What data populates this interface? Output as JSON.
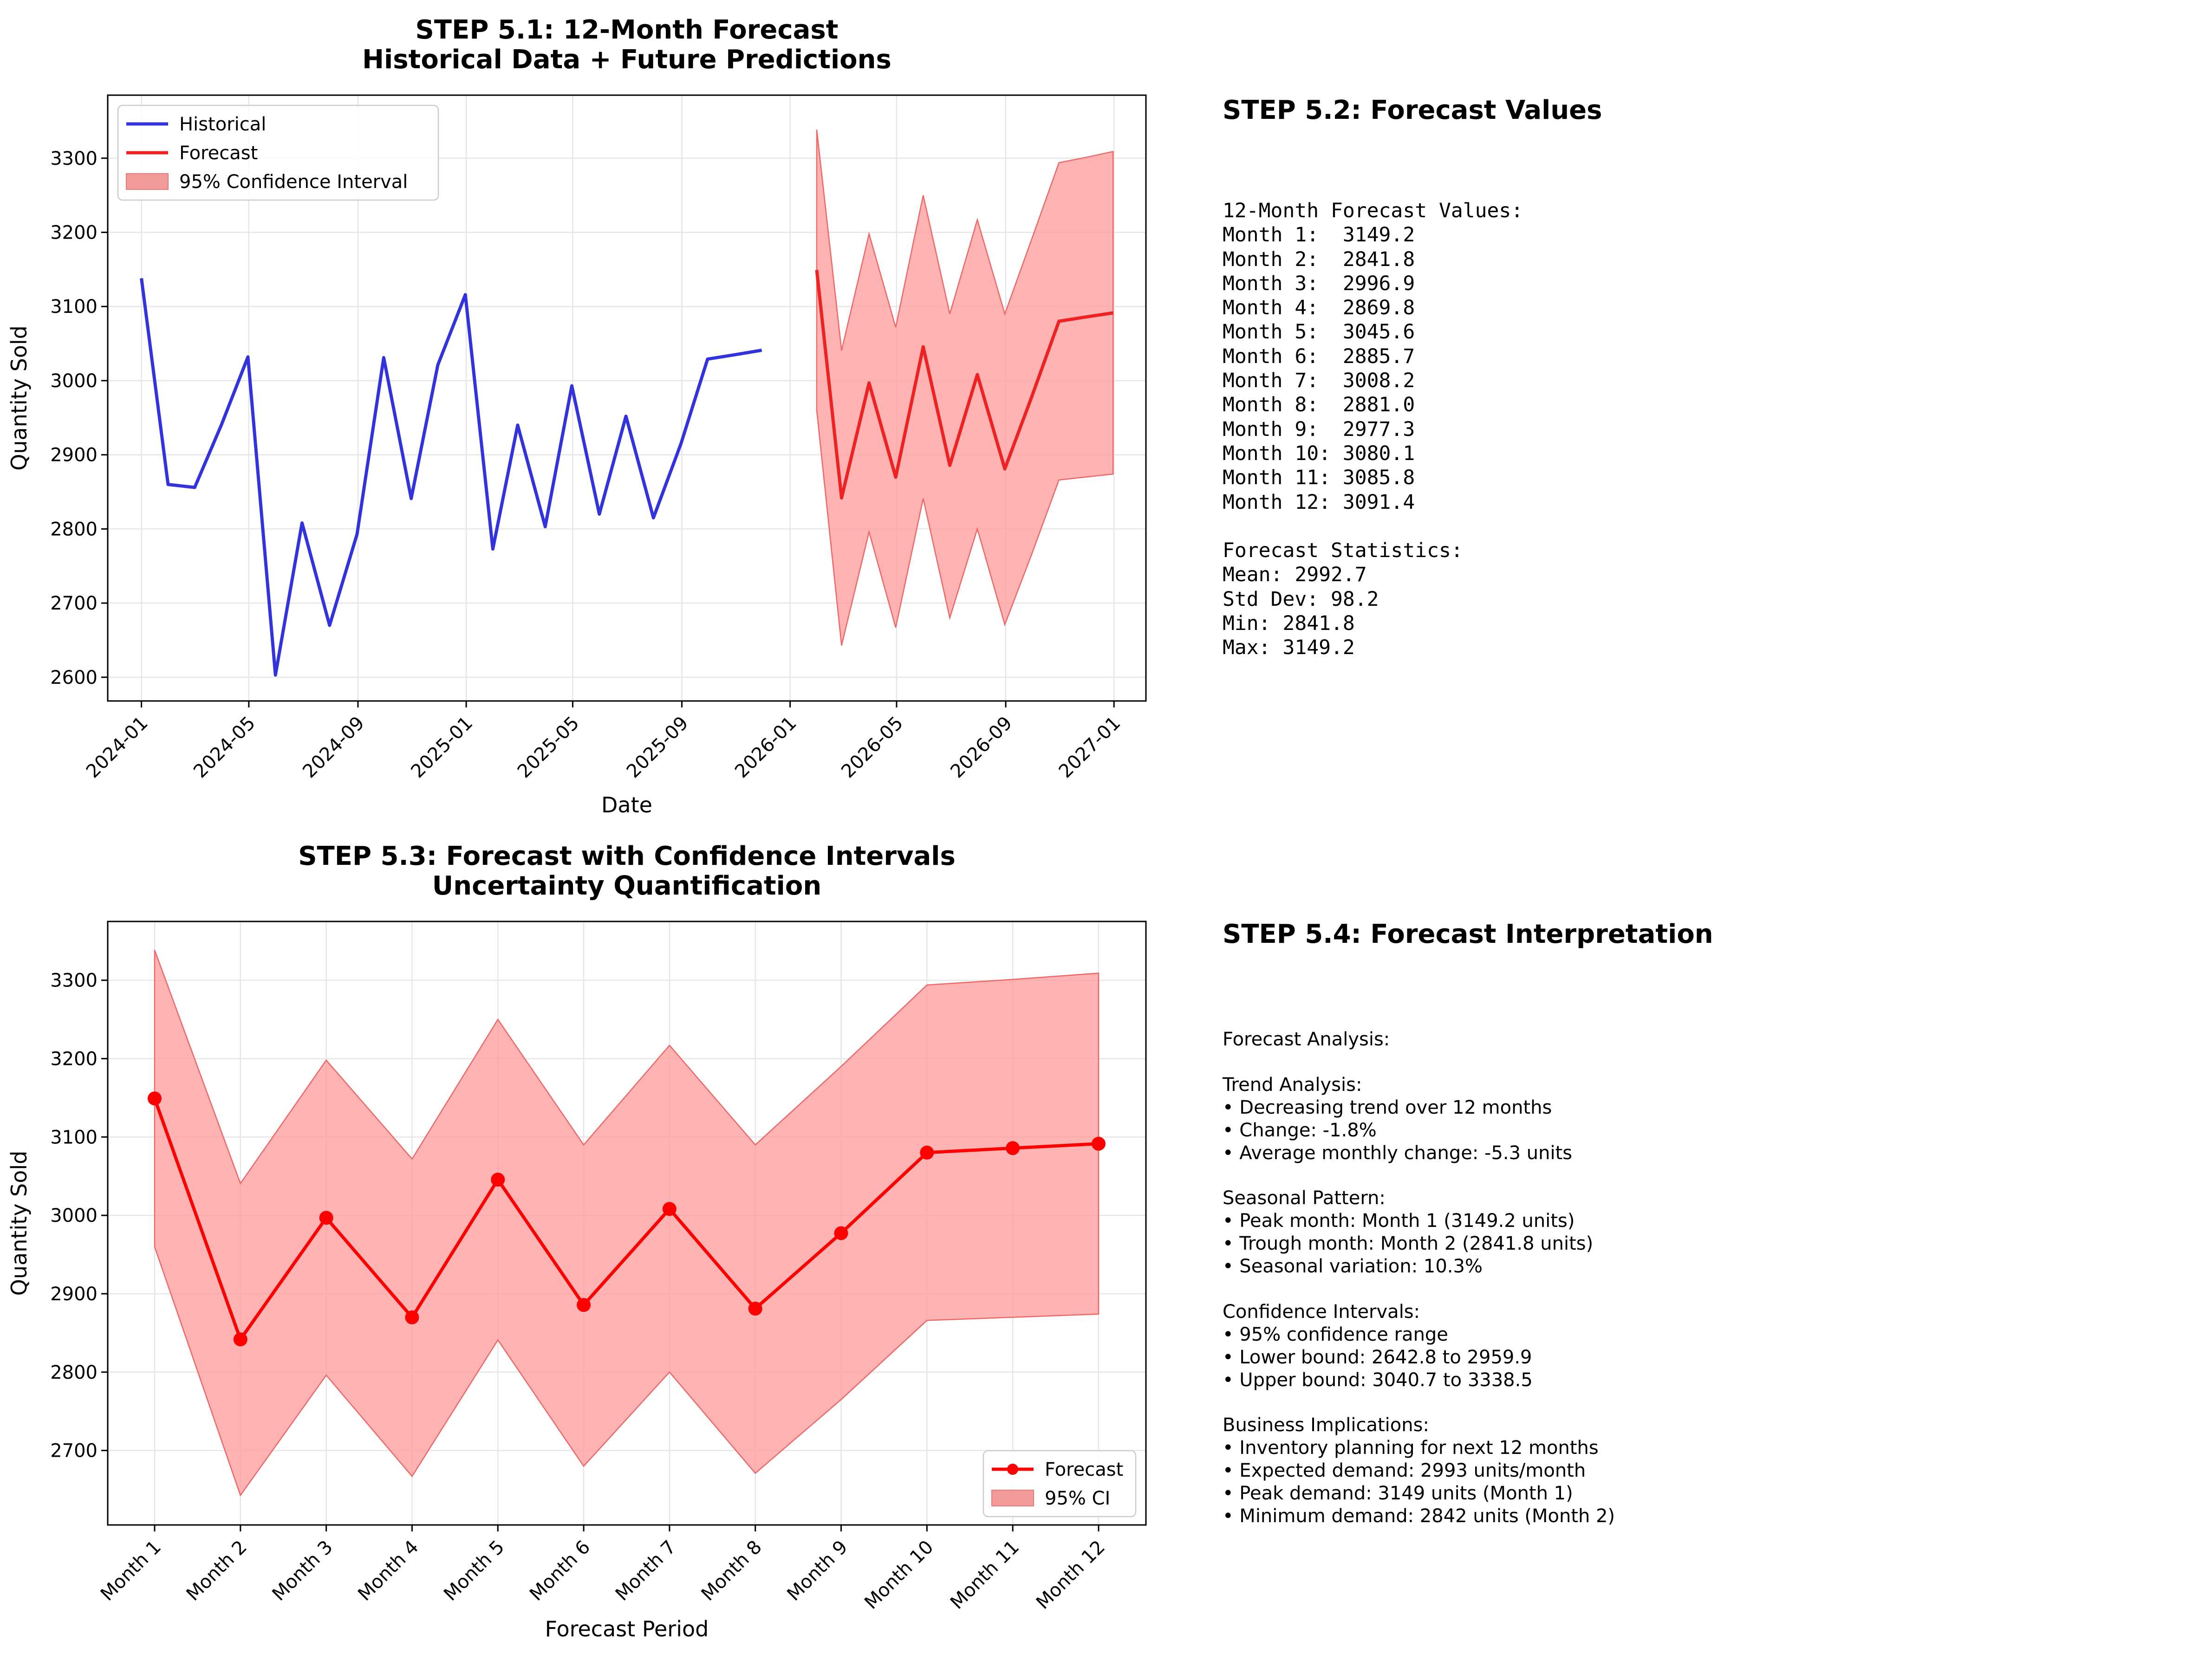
{
  "chart_data": [
    {
      "type": "line",
      "title": "STEP 5.1: 12-Month Forecast",
      "subtitle": "Historical Data + Future Predictions",
      "xlabel": "Date",
      "ylabel": "Quantity Sold",
      "ylim": [
        2568,
        3385
      ],
      "x_range": [
        "2023-11-24",
        "2027-02-06"
      ],
      "grid": true,
      "legend_placement": "top-left",
      "x_ticks": [
        "2024-01",
        "2024-05",
        "2024-09",
        "2025-01",
        "2025-05",
        "2025-09",
        "2026-01",
        "2026-05",
        "2026-09",
        "2027-01"
      ],
      "y_ticks": [
        2600,
        2700,
        2800,
        2900,
        3000,
        3100,
        3200,
        3300
      ],
      "series": [
        {
          "name": "Historical",
          "color": "#3333dd",
          "x": [
            "2024-01-01",
            "2024-01-31",
            "2024-03-01",
            "2024-03-31",
            "2024-04-30",
            "2024-05-31",
            "2024-06-30",
            "2024-07-31",
            "2024-08-31",
            "2024-09-30",
            "2024-10-31",
            "2024-11-30",
            "2024-12-31",
            "2025-01-31",
            "2025-02-28",
            "2025-03-31",
            "2025-04-30",
            "2025-05-31",
            "2025-06-30",
            "2025-07-31",
            "2025-08-31",
            "2025-09-30",
            "2025-10-31",
            "2025-11-30"
          ],
          "y": [
            3138,
            2860,
            2856,
            2940,
            3032,
            2603,
            2808,
            2670,
            2793,
            3031,
            2841,
            3021,
            3116,
            2773,
            2940,
            2803,
            2993,
            2820,
            2952,
            2815,
            2915,
            3029,
            3035,
            3041
          ]
        },
        {
          "name": "Forecast",
          "color": "#ee2222",
          "x": [
            "2026-01-31",
            "2026-02-28",
            "2026-03-31",
            "2026-04-30",
            "2026-05-31",
            "2026-06-30",
            "2026-07-31",
            "2026-08-31",
            "2026-09-30",
            "2026-10-31",
            "2026-11-30",
            "2026-12-31"
          ],
          "y": [
            3149.2,
            2841.8,
            2996.9,
            2869.8,
            3045.6,
            2885.7,
            3008.2,
            2881.0,
            2977.3,
            3080.1,
            3085.8,
            3091.4
          ]
        },
        {
          "name": "95% Confidence Interval",
          "type": "band",
          "color": "#ff9999",
          "x": [
            "2026-01-31",
            "2026-02-28",
            "2026-03-31",
            "2026-04-30",
            "2026-05-31",
            "2026-06-30",
            "2026-07-31",
            "2026-08-31",
            "2026-09-30",
            "2026-10-31",
            "2026-11-30",
            "2026-12-31"
          ],
          "lower": [
            2959.9,
            2642.8,
            2796,
            2667,
            2841,
            2680,
            2800,
            2671,
            2765,
            2866,
            2870,
            2874
          ],
          "upper": [
            3338.5,
            3040.7,
            3198,
            3072,
            3250,
            3090,
            3217,
            3090,
            3190,
            3294,
            3301,
            3309
          ]
        }
      ]
    },
    {
      "type": "line",
      "title": "STEP 5.3: Forecast with Confidence Intervals",
      "subtitle": "Uncertainty Quantification",
      "xlabel": "Forecast Period",
      "ylabel": "Quantity Sold",
      "ylim": [
        2605,
        3375
      ],
      "grid": true,
      "legend_placement": "bottom-right",
      "categories": [
        "Month 1",
        "Month 2",
        "Month 3",
        "Month 4",
        "Month 5",
        "Month 6",
        "Month 7",
        "Month 8",
        "Month 9",
        "Month 10",
        "Month 11",
        "Month 12"
      ],
      "y_ticks": [
        2700,
        2800,
        2900,
        3000,
        3100,
        3200,
        3300
      ],
      "series": [
        {
          "name": "Forecast",
          "color": "#ff0000",
          "values": [
            3149.2,
            2841.8,
            2996.9,
            2869.8,
            3045.6,
            2885.7,
            3008.2,
            2881.0,
            2977.3,
            3080.1,
            3085.8,
            3091.4
          ]
        },
        {
          "name": "95% CI",
          "type": "band",
          "color": "#ff9999",
          "lower": [
            2959.9,
            2642.8,
            2796,
            2667,
            2841,
            2680,
            2800,
            2671,
            2765,
            2866,
            2870,
            2874
          ],
          "upper": [
            3338.5,
            3040.7,
            3198,
            3072,
            3250,
            3090,
            3217,
            3090,
            3190,
            3294,
            3301,
            3309
          ]
        }
      ]
    }
  ],
  "panels": {
    "forecast_values": {
      "title": "STEP 5.2: Forecast Values",
      "text": "12-Month Forecast Values:\nMonth 1:  3149.2\nMonth 2:  2841.8\nMonth 3:  2996.9\nMonth 4:  2869.8\nMonth 5:  3045.6\nMonth 6:  2885.7\nMonth 7:  3008.2\nMonth 8:  2881.0\nMonth 9:  2977.3\nMonth 10: 3080.1\nMonth 11: 3085.8\nMonth 12: 3091.4\n\nForecast Statistics:\nMean: 2992.7\nStd Dev: 98.2\nMin: 2841.8\nMax: 3149.2"
    },
    "interpretation": {
      "title": "STEP 5.4: Forecast Interpretation",
      "text": "Forecast Analysis:\n\nTrend Analysis:\n• Decreasing trend over 12 months\n• Change: -1.8%\n• Average monthly change: -5.3 units\n\nSeasonal Pattern:\n• Peak month: Month 1 (3149.2 units)\n• Trough month: Month 2 (2841.8 units)\n• Seasonal variation: 10.3%\n\nConfidence Intervals:\n• 95% confidence range\n• Lower bound: 2642.8 to 2959.9\n• Upper bound: 3040.7 to 3338.5\n\nBusiness Implications:\n• Inventory planning for next 12 months\n• Expected demand: 2993 units/month\n• Peak demand: 3149 units (Month 1)\n• Minimum demand: 2842 units (Month 2)"
    }
  }
}
